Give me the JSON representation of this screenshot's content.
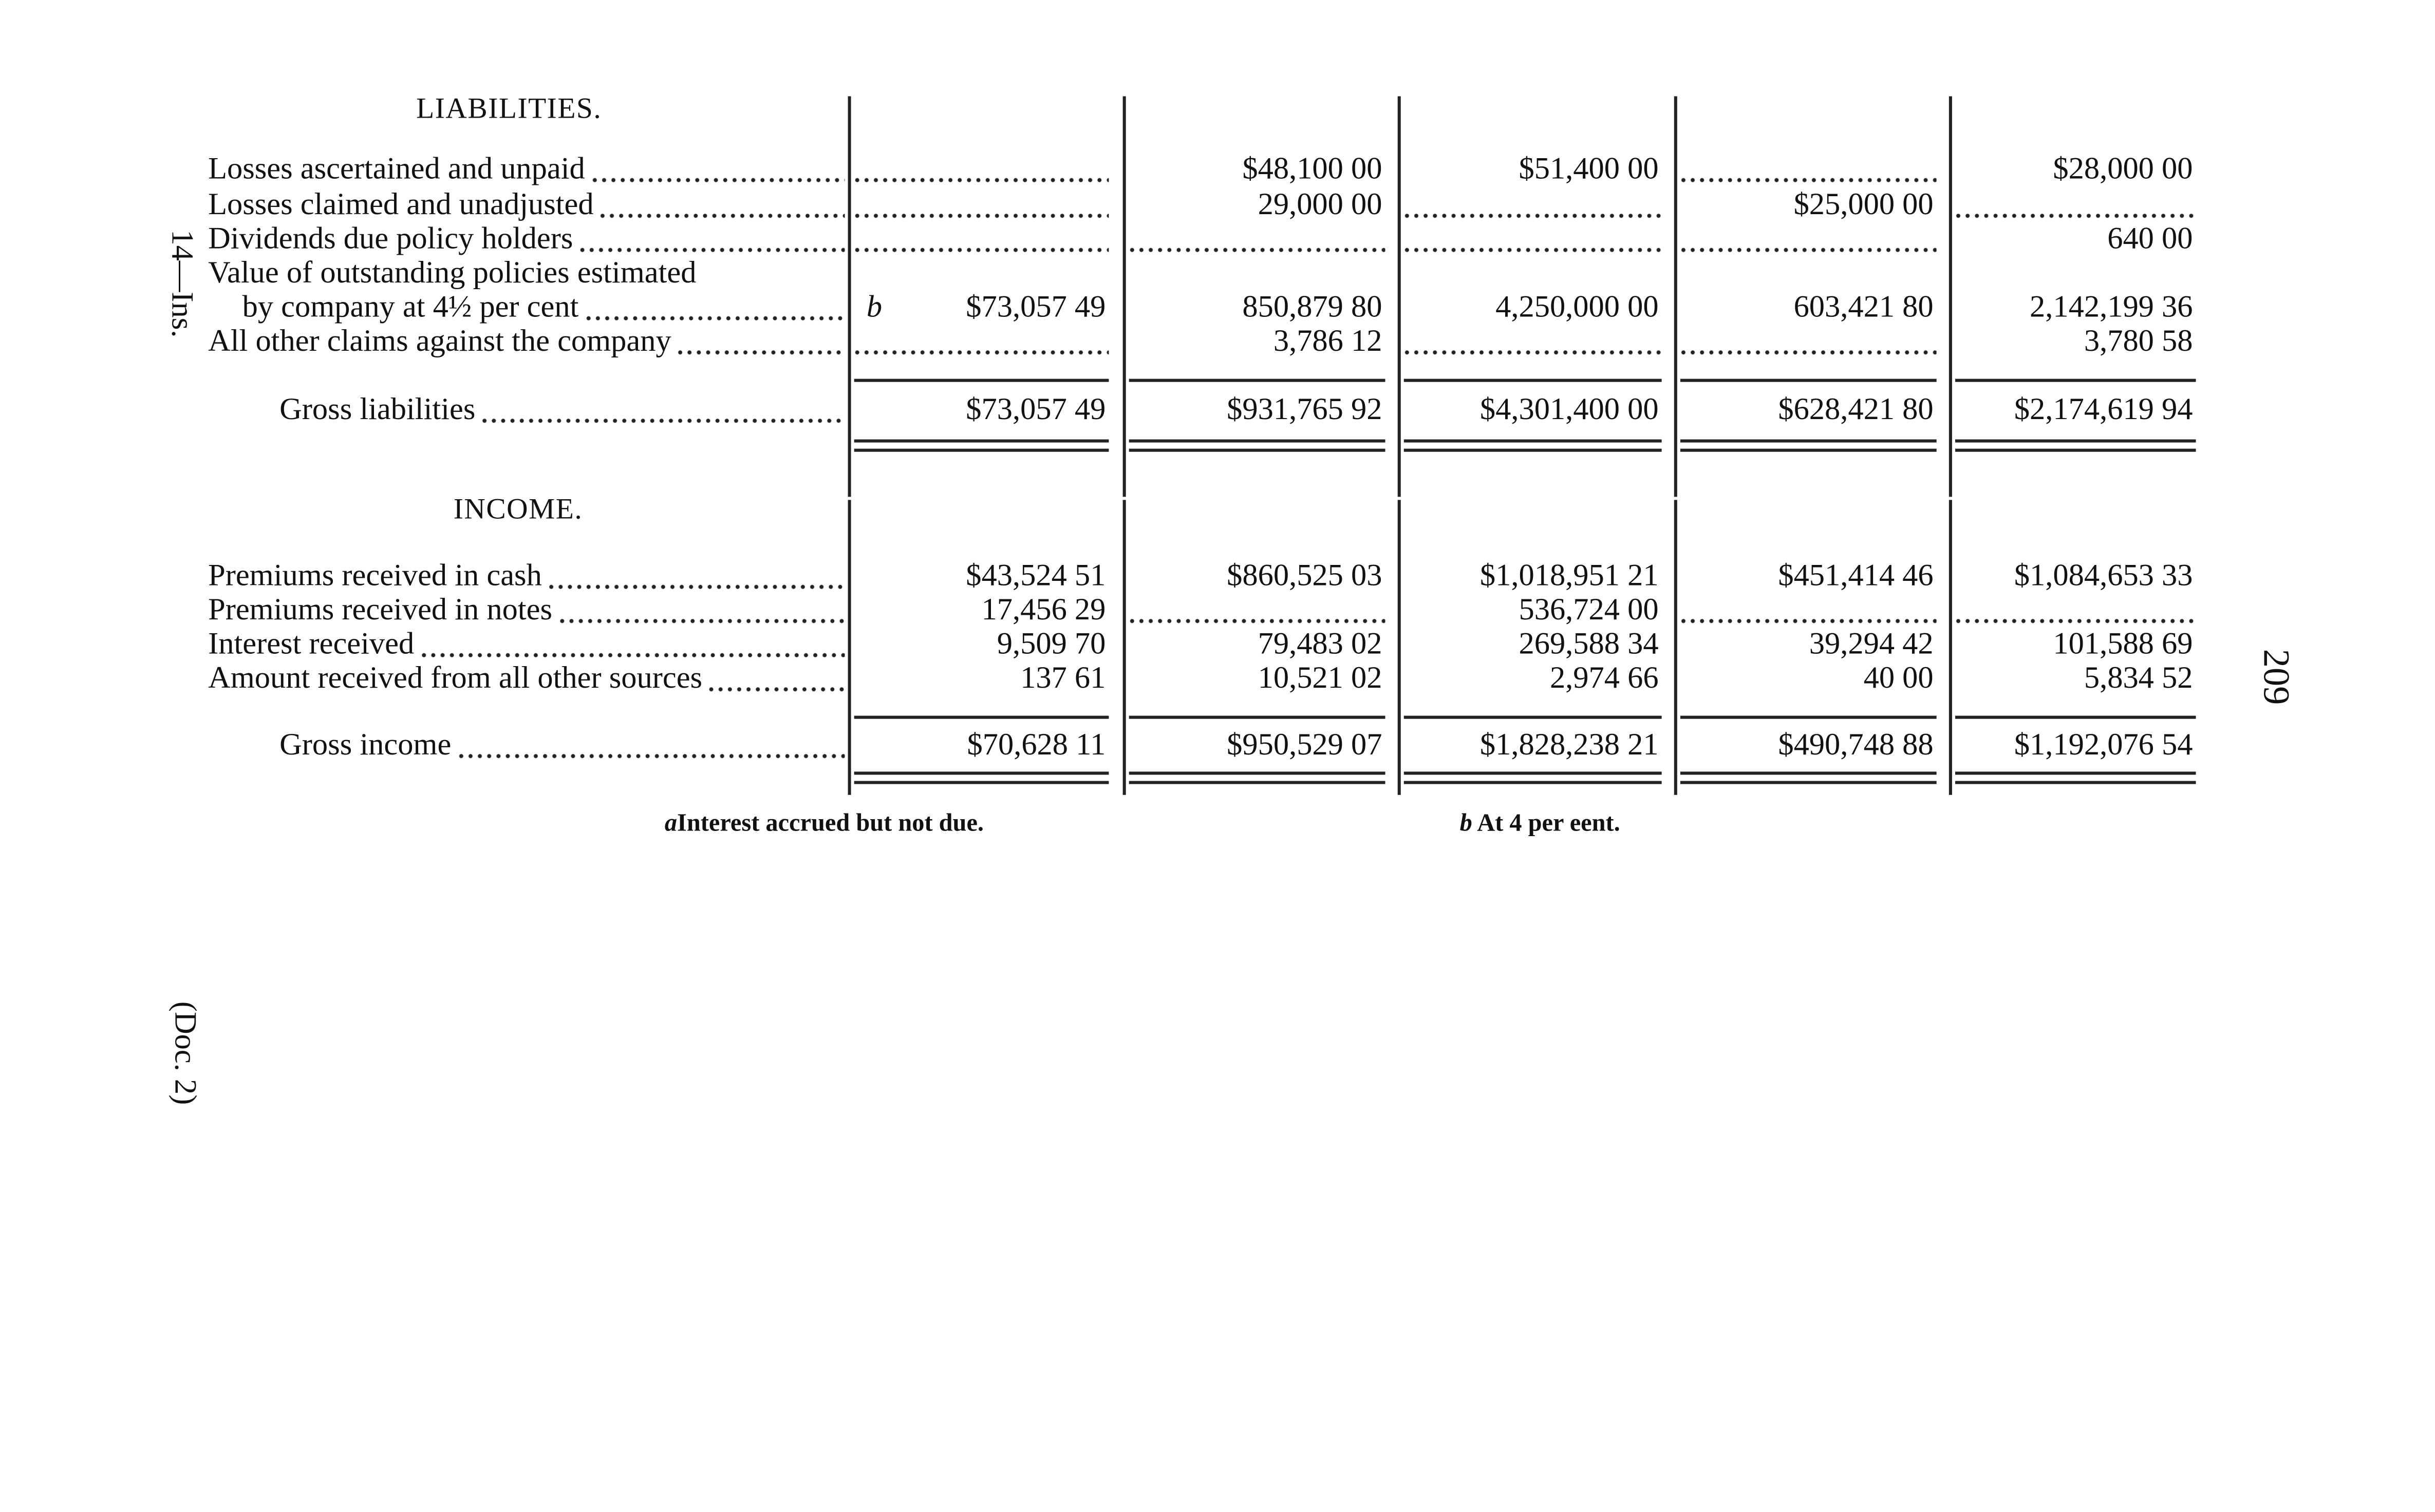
{
  "sections": {
    "liabilities": {
      "heading": "LIABILITIES.",
      "rows": [
        {
          "label": "Losses ascertained and unpaid",
          "cells": [
            null,
            "$48,100 00",
            "$51,400 00",
            null,
            "$28,000 00"
          ]
        },
        {
          "label": "Losses claimed and unadjusted",
          "cells": [
            null,
            "29,000 00",
            null,
            "$25,000 00",
            null
          ]
        },
        {
          "label": "Dividends due policy holders",
          "cells": [
            null,
            null,
            null,
            null,
            "640 00"
          ]
        },
        {
          "label": "Value of outstanding policies estimated",
          "label2": "by company at 4½ per cent",
          "marker": "b",
          "cells": [
            "$73,057 49",
            "850,879 80",
            "4,250,000 00",
            "603,421 80",
            "2,142,199 36"
          ]
        },
        {
          "label": "All other claims against the company",
          "cells": [
            null,
            "3,786 12",
            null,
            null,
            "3,780 58"
          ]
        }
      ],
      "total": {
        "label": "Gross liabilities",
        "cells": [
          "$73,057 49",
          "$931,765 92",
          "$4,301,400 00",
          "$628,421 80",
          "$2,174,619 94"
        ]
      }
    },
    "income": {
      "heading": "INCOME.",
      "rows": [
        {
          "label": "Premiums received in cash",
          "cells": [
            "$43,524 51",
            "$860,525 03",
            "$1,018,951 21",
            "$451,414 46",
            "$1,084,653 33"
          ]
        },
        {
          "label": "Premiums received in notes",
          "cells": [
            "17,456 29",
            null,
            "536,724 00",
            null,
            null
          ]
        },
        {
          "label": "Interest received",
          "cells": [
            "9,509 70",
            "79,483 02",
            "269,588 34",
            "39,294 42",
            "101,588 69"
          ]
        },
        {
          "label": "Amount received from all other sources",
          "cells": [
            "137 61",
            "10,521 02",
            "2,974 66",
            "40 00",
            "5,834 52"
          ]
        }
      ],
      "total": {
        "label": "Gross income",
        "cells": [
          "$70,628 11",
          "$950,529 07",
          "$1,828,238 21",
          "$490,748 88",
          "$1,192,076 54"
        ]
      }
    }
  },
  "footnotes": {
    "a": {
      "marker": "a",
      "text": "Interest accrued but not due."
    },
    "b": {
      "marker": "b",
      "text": "At 4 per eent."
    }
  },
  "margin": {
    "signature": "14—Ins.",
    "page_number": "209",
    "doc": "(Doc. 2)"
  }
}
